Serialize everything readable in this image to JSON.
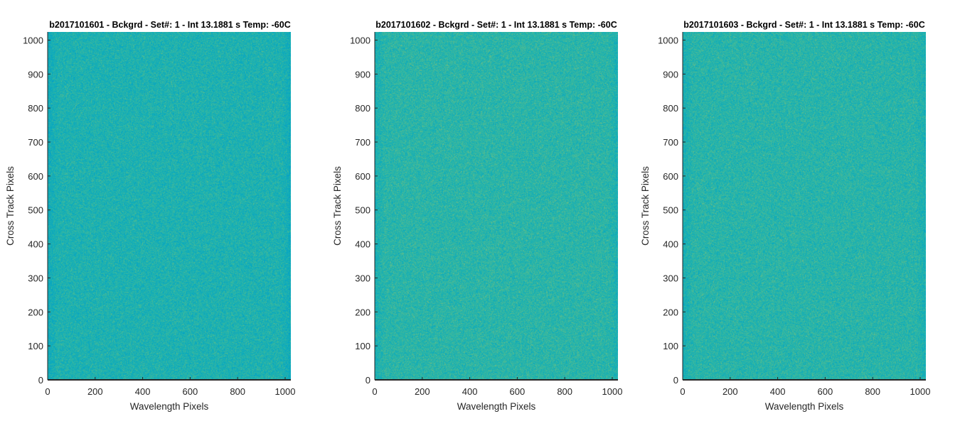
{
  "colors": {
    "background": "#ffffff",
    "axis": "#262626",
    "title": "#000000",
    "colormap": "parula",
    "low": "#1f9fbf",
    "mid": "#2aaea6",
    "high": "#5cb96a"
  },
  "chart_data": [
    {
      "type": "heatmap",
      "title": "b2017101601 - Bckgrd - Set#: 1 - Int 13.1881 s Temp: -60C",
      "xlabel": "Wavelength Pixels",
      "ylabel": "Cross Track Pixels",
      "xlim": [
        0,
        1024
      ],
      "ylim": [
        0,
        1024
      ],
      "xticks": [
        0,
        200,
        400,
        600,
        800,
        1000
      ],
      "yticks": [
        0,
        100,
        200,
        300,
        400,
        500,
        600,
        700,
        800,
        900,
        1000
      ],
      "grid": false,
      "colormap": "parula",
      "tone": 0.18
    },
    {
      "type": "heatmap",
      "title": "b2017101602 - Bckgrd - Set#: 1 - Int 13.1881 s Temp: -60C",
      "xlabel": "Wavelength Pixels",
      "ylabel": "Cross Track Pixels",
      "xlim": [
        0,
        1024
      ],
      "ylim": [
        0,
        1024
      ],
      "xticks": [
        0,
        200,
        400,
        600,
        800,
        1000
      ],
      "yticks": [
        0,
        100,
        200,
        300,
        400,
        500,
        600,
        700,
        800,
        900,
        1000
      ],
      "grid": false,
      "colormap": "parula",
      "tone": 0.42
    },
    {
      "type": "heatmap",
      "title": "b2017101603 - Bckgrd - Set#: 1 - Int 13.1881 s Temp: -60C",
      "xlabel": "Wavelength Pixels",
      "ylabel": "Cross Track Pixels",
      "xlim": [
        0,
        1024
      ],
      "ylim": [
        0,
        1024
      ],
      "xticks": [
        0,
        200,
        400,
        600,
        800,
        1000
      ],
      "yticks": [
        0,
        100,
        200,
        300,
        400,
        500,
        600,
        700,
        800,
        900,
        1000
      ],
      "grid": false,
      "colormap": "parula",
      "tone": 0.38
    }
  ]
}
